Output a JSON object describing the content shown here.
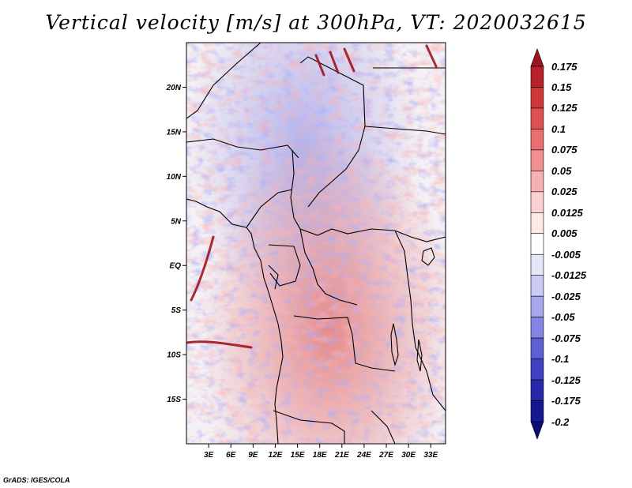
{
  "title": "Vertical velocity [m/s] at 300hPa, VT: 2020032615",
  "credit": "GrADS: IGES/COLA",
  "map": {
    "lat_ticks": [
      "20N",
      "15N",
      "10N",
      "5N",
      "EQ",
      "5S",
      "10S",
      "15S"
    ],
    "lon_ticks": [
      "3E",
      "6E",
      "9E",
      "12E",
      "15E",
      "18E",
      "21E",
      "24E",
      "27E",
      "30E",
      "33E"
    ],
    "lon_range_deg": [
      0,
      35
    ],
    "lat_range_deg": [
      -20,
      25
    ]
  },
  "colorbar": {
    "labels": [
      "0.175",
      "0.15",
      "0.125",
      "0.1",
      "0.075",
      "0.05",
      "0.025",
      "0.0125",
      "0.005",
      "-0.005",
      "-0.0125",
      "-0.025",
      "-0.05",
      "-0.075",
      "-0.1",
      "-0.125",
      "-0.175",
      "-0.2"
    ],
    "colors": [
      "#a0141e",
      "#b8222a",
      "#cc3838",
      "#dc5050",
      "#e87070",
      "#f09090",
      "#f6b2b2",
      "#fad0d0",
      "#fde8e8",
      "#ffffff",
      "#e6e6fb",
      "#cbcbf6",
      "#a8a8ee",
      "#8484e2",
      "#5f5fd4",
      "#4040c0",
      "#2828a8",
      "#161690",
      "#0c0c78"
    ]
  },
  "chart_data": {
    "type": "heatmap",
    "title": "Vertical velocity [m/s] at 300hPa, VT: 2020032615",
    "variable": "Vertical velocity",
    "units": "m/s",
    "level": "300hPa",
    "valid_time": "2020032615",
    "x_ticks": [
      "3E",
      "6E",
      "9E",
      "12E",
      "15E",
      "18E",
      "21E",
      "24E",
      "27E",
      "30E",
      "33E"
    ],
    "y_ticks": [
      "20N",
      "15N",
      "10N",
      "5N",
      "EQ",
      "5S",
      "10S",
      "15S"
    ],
    "color_levels": [
      0.175,
      0.15,
      0.125,
      0.1,
      0.075,
      0.05,
      0.025,
      0.0125,
      0.005,
      -0.005,
      -0.0125,
      -0.025,
      -0.05,
      -0.075,
      -0.1,
      -0.125,
      -0.175,
      -0.2
    ]
  }
}
